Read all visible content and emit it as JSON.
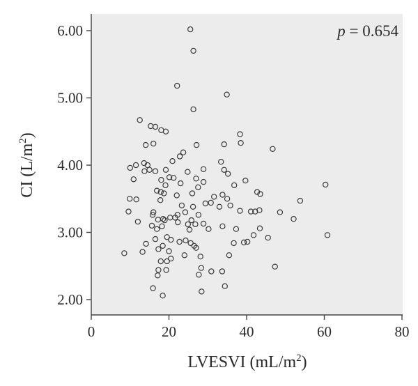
{
  "chart_data": {
    "type": "scatter",
    "xlabel": "LVESVI (mL/m",
    "xlabel_sup": "2",
    "xlabel_tail": ")",
    "ylabel": "CI (L/m",
    "ylabel_sup": "2",
    "ylabel_tail": ")",
    "xlim": [
      0,
      84
    ],
    "ylim": [
      1.85,
      6.1
    ],
    "x_ticks": [
      0,
      20,
      40,
      60,
      80
    ],
    "x_tick_labels": [
      "0",
      "20",
      "40",
      "60",
      "80"
    ],
    "y_ticks": [
      2,
      3,
      4,
      5,
      6
    ],
    "y_tick_labels": [
      "2.00",
      "3.00",
      "4.00",
      "5.00",
      "6.00"
    ],
    "grid": false,
    "annotation": {
      "italic": "p",
      "rest": " = 0.654"
    },
    "colors": {
      "background": "#ececec",
      "marker": "#3a3a3a",
      "axis": "#444444"
    },
    "points": [
      [
        25.5,
        6.02
      ],
      [
        26.3,
        5.7
      ],
      [
        22.1,
        5.18
      ],
      [
        34.9,
        5.05
      ],
      [
        26.3,
        4.83
      ],
      [
        12.5,
        4.67
      ],
      [
        16.5,
        4.57
      ],
      [
        18.0,
        4.52
      ],
      [
        19.2,
        4.5
      ],
      [
        15.3,
        4.58
      ],
      [
        38.3,
        4.46
      ],
      [
        38.5,
        4.33
      ],
      [
        34.2,
        4.31
      ],
      [
        27.1,
        4.3
      ],
      [
        16.0,
        4.32
      ],
      [
        46.7,
        4.24
      ],
      [
        14.0,
        4.3
      ],
      [
        23.7,
        4.19
      ],
      [
        22.8,
        4.13
      ],
      [
        20.9,
        4.06
      ],
      [
        33.4,
        4.05
      ],
      [
        11.5,
        4.0
      ],
      [
        13.6,
        4.03
      ],
      [
        14.5,
        4.0
      ],
      [
        15.0,
        3.93
      ],
      [
        13.7,
        3.91
      ],
      [
        16.5,
        3.91
      ],
      [
        19.2,
        3.93
      ],
      [
        10.0,
        3.96
      ],
      [
        24.8,
        3.9
      ],
      [
        28.9,
        3.94
      ],
      [
        34.2,
        3.93
      ],
      [
        35.2,
        3.87
      ],
      [
        20.1,
        3.82
      ],
      [
        21.2,
        3.81
      ],
      [
        18.0,
        3.78
      ],
      [
        10.9,
        3.79
      ],
      [
        27.0,
        3.8
      ],
      [
        39.7,
        3.77
      ],
      [
        28.9,
        3.75
      ],
      [
        23.0,
        3.73
      ],
      [
        36.8,
        3.7
      ],
      [
        60.3,
        3.71
      ],
      [
        19.1,
        3.7
      ],
      [
        27.5,
        3.67
      ],
      [
        16.9,
        3.62
      ],
      [
        18.7,
        3.58
      ],
      [
        17.9,
        3.6
      ],
      [
        42.7,
        3.6
      ],
      [
        43.5,
        3.57
      ],
      [
        26.0,
        3.58
      ],
      [
        33.8,
        3.56
      ],
      [
        31.6,
        3.53
      ],
      [
        22.0,
        3.55
      ],
      [
        9.9,
        3.5
      ],
      [
        11.6,
        3.49
      ],
      [
        17.8,
        3.48
      ],
      [
        35.0,
        3.5
      ],
      [
        53.8,
        3.47
      ],
      [
        29.4,
        3.43
      ],
      [
        30.8,
        3.44
      ],
      [
        35.8,
        3.4
      ],
      [
        23.3,
        3.4
      ],
      [
        33.0,
        3.38
      ],
      [
        26.2,
        3.38
      ],
      [
        16.0,
        3.3
      ],
      [
        24.2,
        3.3
      ],
      [
        38.3,
        3.32
      ],
      [
        41.1,
        3.31
      ],
      [
        42.2,
        3.31
      ],
      [
        43.3,
        3.33
      ],
      [
        48.6,
        3.3
      ],
      [
        9.6,
        3.31
      ],
      [
        15.8,
        3.26
      ],
      [
        22.2,
        3.26
      ],
      [
        27.6,
        3.26
      ],
      [
        20.3,
        3.22
      ],
      [
        21.6,
        3.22
      ],
      [
        18.5,
        3.2
      ],
      [
        17.2,
        3.19
      ],
      [
        18.9,
        3.18
      ],
      [
        52.1,
        3.2
      ],
      [
        25.8,
        3.18
      ],
      [
        12.0,
        3.16
      ],
      [
        22.3,
        3.15
      ],
      [
        28.9,
        3.13
      ],
      [
        24.9,
        3.12
      ],
      [
        26.8,
        3.12
      ],
      [
        15.6,
        3.1
      ],
      [
        18.2,
        3.09
      ],
      [
        33.8,
        3.09
      ],
      [
        16.9,
        3.05
      ],
      [
        37.3,
        3.05
      ],
      [
        43.4,
        3.06
      ],
      [
        25.3,
        3.04
      ],
      [
        30.2,
        3.05
      ],
      [
        60.8,
        2.96
      ],
      [
        41.8,
        2.96
      ],
      [
        19.5,
        2.93
      ],
      [
        45.5,
        2.92
      ],
      [
        16.5,
        2.9
      ],
      [
        20.5,
        2.89
      ],
      [
        24.3,
        2.88
      ],
      [
        22.7,
        2.86
      ],
      [
        39.3,
        2.85
      ],
      [
        40.2,
        2.86
      ],
      [
        25.6,
        2.84
      ],
      [
        36.7,
        2.84
      ],
      [
        14.1,
        2.83
      ],
      [
        18.4,
        2.8
      ],
      [
        26.5,
        2.8
      ],
      [
        27.0,
        2.77
      ],
      [
        17.3,
        2.75
      ],
      [
        20.0,
        2.72
      ],
      [
        13.2,
        2.71
      ],
      [
        8.5,
        2.69
      ],
      [
        35.5,
        2.66
      ],
      [
        24.0,
        2.66
      ],
      [
        28.1,
        2.64
      ],
      [
        20.5,
        2.61
      ],
      [
        17.9,
        2.57
      ],
      [
        19.5,
        2.57
      ],
      [
        47.3,
        2.49
      ],
      [
        28.3,
        2.47
      ],
      [
        17.3,
        2.44
      ],
      [
        19.3,
        2.44
      ],
      [
        30.9,
        2.42
      ],
      [
        33.7,
        2.42
      ],
      [
        17.1,
        2.36
      ],
      [
        27.7,
        2.37
      ],
      [
        34.4,
        2.2
      ],
      [
        15.9,
        2.17
      ],
      [
        28.4,
        2.12
      ],
      [
        18.4,
        2.06
      ]
    ]
  }
}
